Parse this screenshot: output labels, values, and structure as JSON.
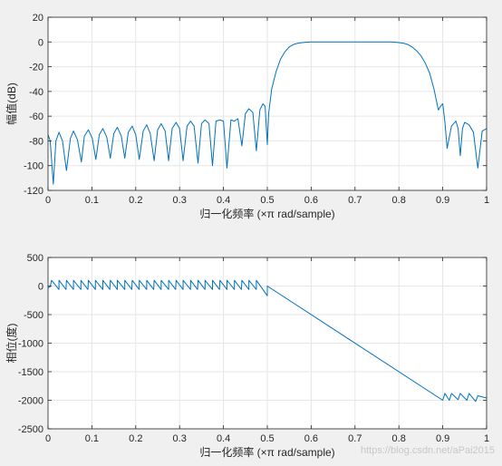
{
  "chart_data": [
    {
      "type": "line",
      "xlabel": "归一化频率  (×π rad/sample)",
      "ylabel": "幅值(dB)",
      "xlim": [
        0,
        1
      ],
      "ylim": [
        -120,
        20
      ],
      "xticks": [
        "0",
        "0.1",
        "0.2",
        "0.3",
        "0.4",
        "0.5",
        "0.6",
        "0.7",
        "0.8",
        "0.9",
        "1"
      ],
      "yticks": [
        "20",
        "0",
        "-20",
        "-40",
        "-60",
        "-80",
        "-100",
        "-120"
      ],
      "grid": true,
      "line_color": "#0072BD",
      "series": [
        {
          "x": [
            0,
            0.005,
            0.012,
            0.018,
            0.025,
            0.033,
            0.042,
            0.051,
            0.058,
            0.067,
            0.076,
            0.083,
            0.092,
            0.101,
            0.109,
            0.117,
            0.125,
            0.134,
            0.142,
            0.15,
            0.158,
            0.167,
            0.175,
            0.183,
            0.192,
            0.2,
            0.208,
            0.217,
            0.225,
            0.233,
            0.242,
            0.25,
            0.258,
            0.267,
            0.275,
            0.283,
            0.292,
            0.3,
            0.308,
            0.317,
            0.325,
            0.333,
            0.342,
            0.35,
            0.358,
            0.367,
            0.375,
            0.383,
            0.392,
            0.4,
            0.408,
            0.417,
            0.425,
            0.433,
            0.442,
            0.45,
            0.458,
            0.467,
            0.475,
            0.483,
            0.49,
            0.495,
            0.5,
            0.503,
            0.51,
            0.52,
            0.53,
            0.54,
            0.55,
            0.56,
            0.57,
            0.58,
            0.59,
            0.6,
            0.61,
            0.62,
            0.65,
            0.7,
            0.75,
            0.78,
            0.79,
            0.8,
            0.81,
            0.82,
            0.83,
            0.84,
            0.85,
            0.86,
            0.87,
            0.88,
            0.89,
            0.895,
            0.9,
            0.905,
            0.91,
            0.92,
            0.93,
            0.935,
            0.94,
            0.945,
            0.95,
            0.96,
            0.97,
            0.98,
            0.99,
            1
          ],
          "y": [
            -75,
            -80,
            -115,
            -80,
            -73,
            -80,
            -104,
            -78,
            -72,
            -79,
            -97,
            -76,
            -71,
            -78,
            -95,
            -75,
            -70,
            -77,
            -94,
            -74,
            -69,
            -76,
            -94,
            -73,
            -68,
            -75,
            -95,
            -72,
            -67,
            -74,
            -96,
            -71,
            -66,
            -72,
            -96,
            -70,
            -65,
            -70,
            -96,
            -68,
            -64,
            -68,
            -98,
            -66,
            -63,
            -66,
            -100,
            -64,
            -63,
            -64,
            -102,
            -63,
            -64,
            -62,
            -84,
            -58,
            -54,
            -57,
            -88,
            -55,
            -50,
            -52,
            -83,
            -58,
            -38,
            -24,
            -14,
            -8,
            -4,
            -2,
            -1,
            -0.5,
            -0.2,
            0,
            0,
            0,
            0,
            0,
            0,
            0,
            -0.2,
            -0.5,
            -1,
            -2,
            -4,
            -7,
            -11,
            -17,
            -25,
            -38,
            -55,
            -52,
            -50,
            -65,
            -86,
            -68,
            -64,
            -70,
            -92,
            -70,
            -65,
            -67,
            -73,
            -102,
            -72,
            -70
          ]
        }
      ]
    },
    {
      "type": "line",
      "xlabel": "归一化频率  (×π rad/sample)",
      "ylabel": "相位(度)",
      "xlim": [
        0,
        1
      ],
      "ylim": [
        -2500,
        500
      ],
      "xticks": [
        "0",
        "0.1",
        "0.2",
        "0.3",
        "0.4",
        "0.5",
        "0.6",
        "0.7",
        "0.8",
        "0.9",
        "1"
      ],
      "yticks": [
        "500",
        "0",
        "-500",
        "-1000",
        "-1500",
        "-2000",
        "-2500"
      ],
      "grid": true,
      "line_color": "#0072BD",
      "series": [
        {
          "x": [
            0,
            0.005,
            0.008,
            0.025,
            0.025,
            0.041,
            0.042,
            0.058,
            0.058,
            0.075,
            0.075,
            0.091,
            0.092,
            0.108,
            0.108,
            0.125,
            0.125,
            0.141,
            0.142,
            0.158,
            0.158,
            0.175,
            0.175,
            0.191,
            0.192,
            0.208,
            0.208,
            0.225,
            0.225,
            0.241,
            0.242,
            0.258,
            0.258,
            0.275,
            0.275,
            0.291,
            0.292,
            0.308,
            0.308,
            0.325,
            0.325,
            0.341,
            0.342,
            0.358,
            0.358,
            0.375,
            0.375,
            0.391,
            0.392,
            0.408,
            0.408,
            0.425,
            0.425,
            0.441,
            0.442,
            0.458,
            0.458,
            0.475,
            0.475,
            0.5,
            0.5,
            0.9,
            0.905,
            0.915,
            0.92,
            0.935,
            0.94,
            0.955,
            0.96,
            0.975,
            0.98,
            1
          ],
          "y": [
            -30,
            -10,
            100,
            -60,
            100,
            -60,
            100,
            -60,
            100,
            -60,
            100,
            -60,
            100,
            -60,
            100,
            -60,
            100,
            -60,
            100,
            -60,
            100,
            -60,
            100,
            -60,
            100,
            -60,
            100,
            -60,
            100,
            -60,
            100,
            -60,
            100,
            -60,
            100,
            -60,
            100,
            -60,
            100,
            -60,
            100,
            -60,
            100,
            -60,
            100,
            -60,
            100,
            -60,
            100,
            -60,
            100,
            -60,
            100,
            -60,
            100,
            -60,
            100,
            -60,
            100,
            -170,
            0,
            -2000,
            -1880,
            -2000,
            -1880,
            -1990,
            -1880,
            -2000,
            -1880,
            -2020,
            -1920,
            -1960
          ]
        }
      ]
    }
  ],
  "watermark": "https://blog.csdn.net/aPai2015"
}
